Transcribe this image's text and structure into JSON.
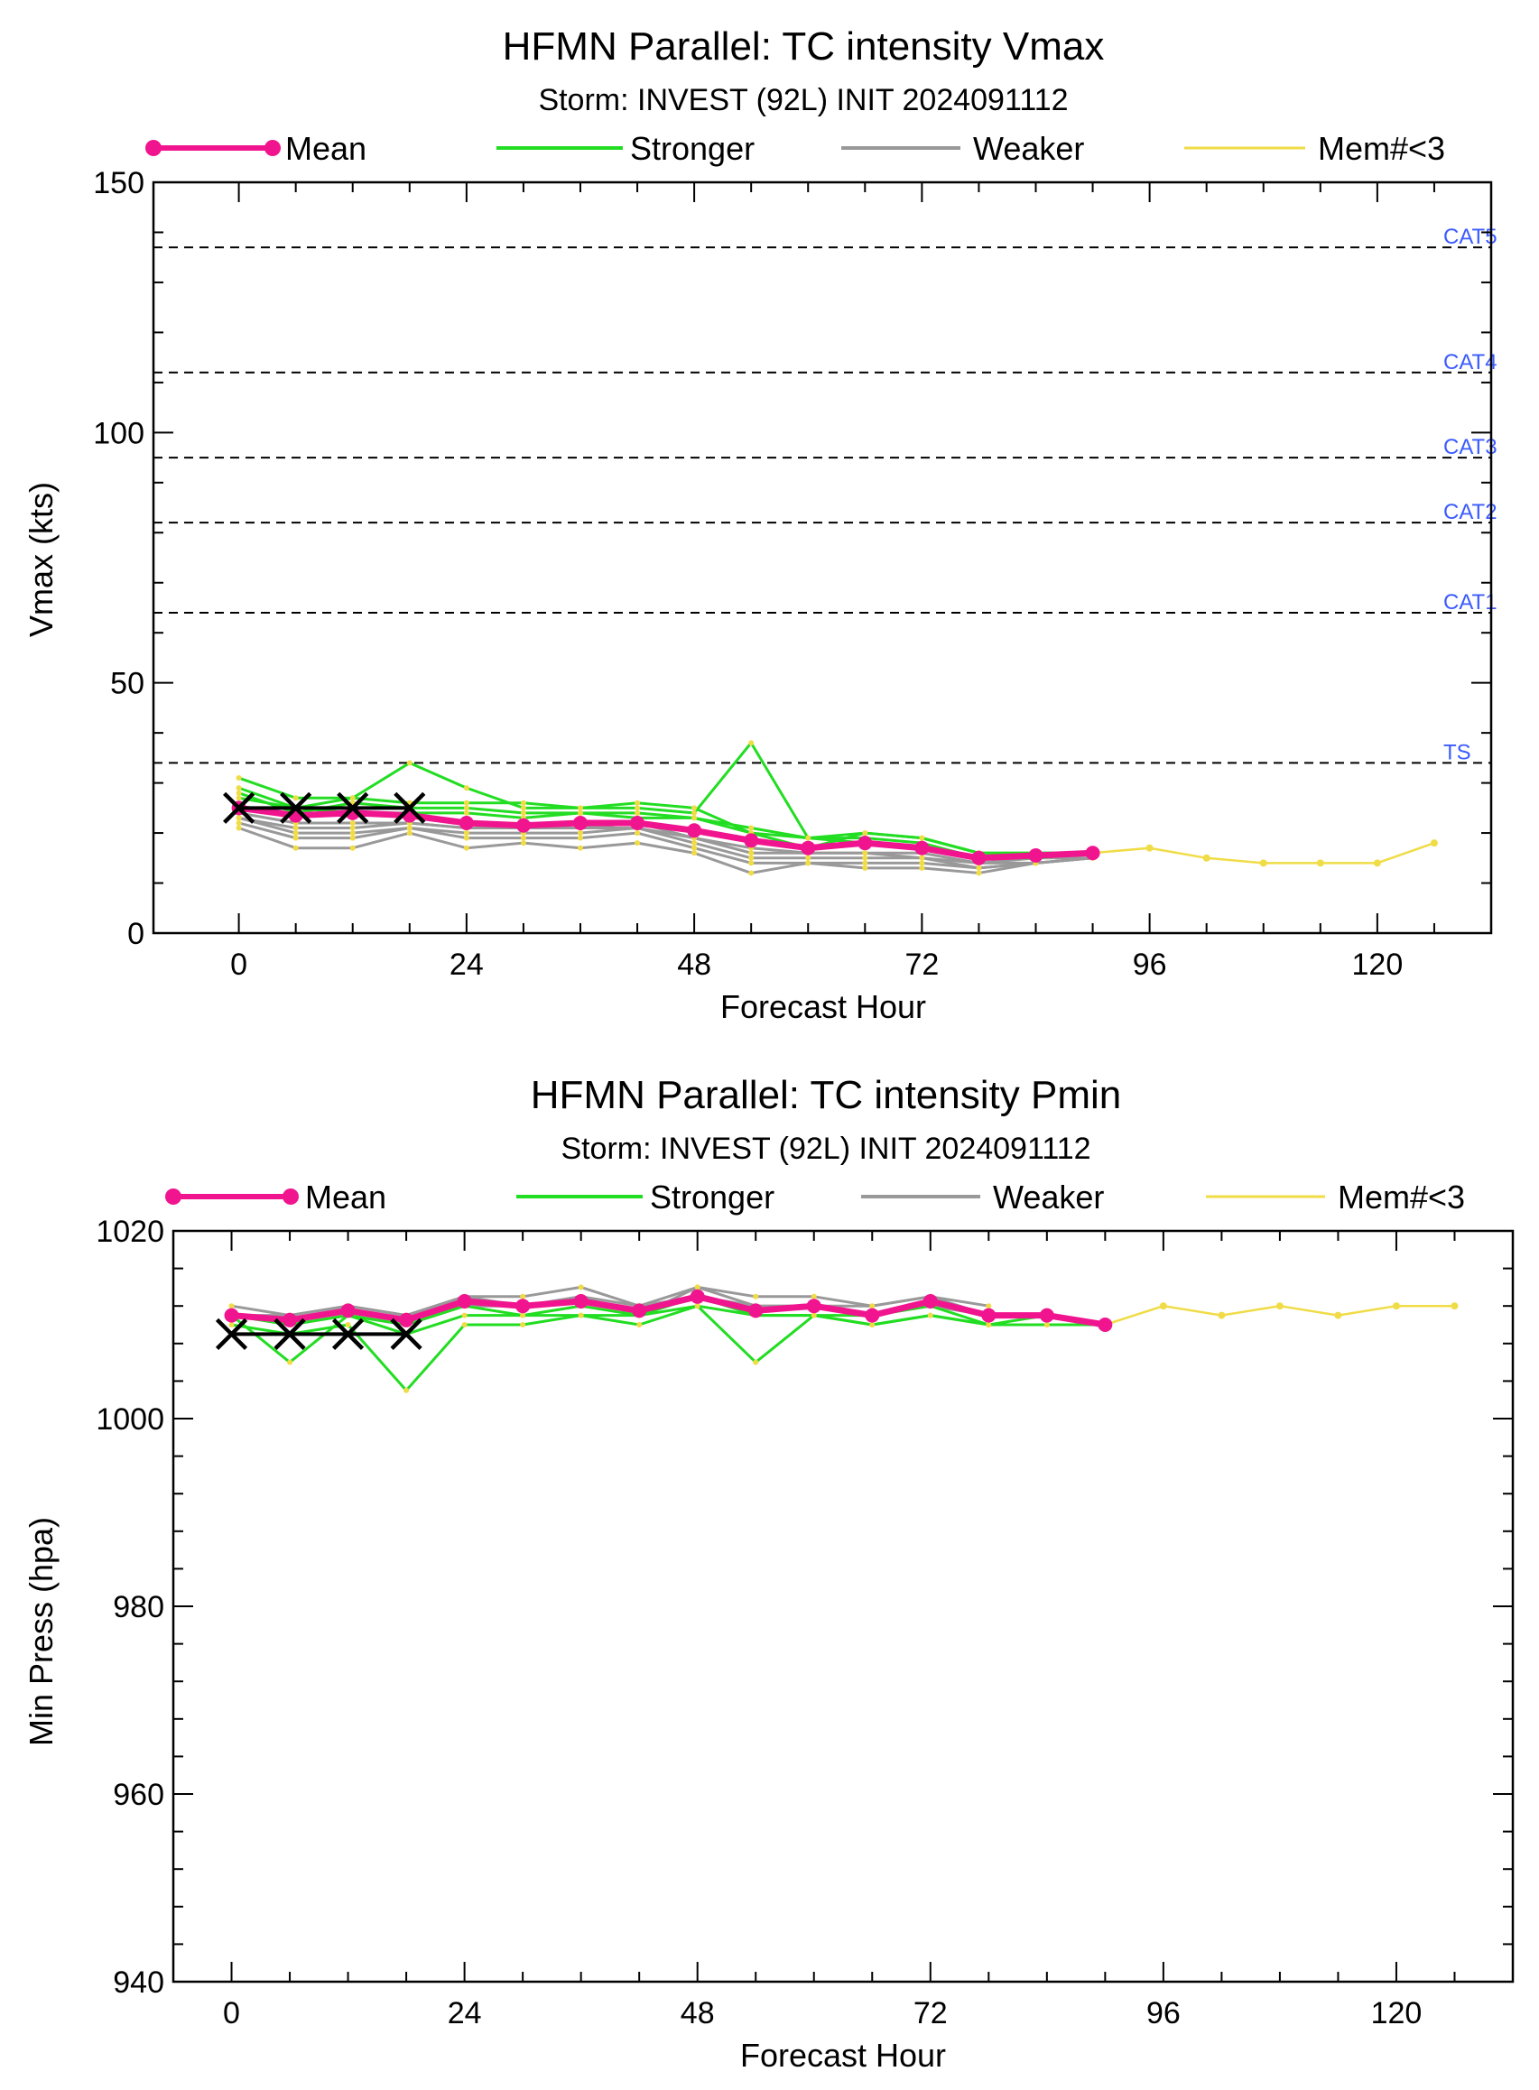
{
  "colors": {
    "mean": "#f0158f",
    "stronger": "#22dd22",
    "weaker": "#999999",
    "few_members": "#f0dc46",
    "observed": "#000000",
    "category": "#3b5bff"
  },
  "chart_data": [
    {
      "type": "line",
      "title": "HFMN Parallel: TC intensity Vmax",
      "subtitle": "Storm: INVEST (92L) INIT 2024091112",
      "xlabel": "Forecast Hour",
      "ylabel": "Vmax (kts)",
      "xlim": [
        -9,
        132
      ],
      "ylim": [
        0,
        150
      ],
      "xticks": [
        0,
        24,
        48,
        72,
        96,
        120
      ],
      "yticks": [
        0,
        50,
        100,
        150
      ],
      "grid": false,
      "legend": {
        "placement": "top",
        "entries": [
          "Mean",
          "Stronger",
          "Weaker",
          "Mem#<3"
        ]
      },
      "thresholds": [
        {
          "label": "TS",
          "y": 34
        },
        {
          "label": "CAT1",
          "y": 64
        },
        {
          "label": "CAT2",
          "y": 82
        },
        {
          "label": "CAT3",
          "y": 95
        },
        {
          "label": "CAT4",
          "y": 112
        },
        {
          "label": "CAT5",
          "y": 137
        }
      ],
      "observed": {
        "x": [
          0,
          6,
          12,
          18
        ],
        "y": [
          25,
          25,
          25,
          25
        ]
      },
      "mean": {
        "x": [
          0,
          6,
          12,
          18,
          24,
          30,
          36,
          42,
          48,
          54,
          60,
          66,
          72,
          78,
          84,
          90
        ],
        "y": [
          25,
          23.5,
          24,
          23.5,
          22,
          21.5,
          22,
          22,
          20.5,
          18.5,
          17,
          18,
          17,
          15,
          15.5,
          16
        ]
      },
      "stronger": [
        {
          "x": [
            0,
            6,
            12,
            18,
            24,
            30,
            36,
            42,
            48,
            54,
            60,
            66,
            72,
            78,
            84,
            90
          ],
          "y": [
            31,
            27,
            27,
            34,
            29,
            25,
            25,
            25,
            24,
            38,
            19,
            20,
            19,
            16,
            16,
            16
          ]
        },
        {
          "x": [
            0,
            6,
            12,
            18,
            24,
            30,
            36,
            42,
            48,
            54,
            60,
            66,
            72,
            78,
            84,
            90
          ],
          "y": [
            29,
            25,
            27,
            26,
            26,
            26,
            25,
            26,
            25,
            20,
            17,
            20,
            19,
            16,
            16,
            16
          ]
        },
        {
          "x": [
            0,
            6,
            12,
            18,
            24,
            30,
            36,
            42,
            48,
            54,
            60,
            66,
            72,
            78,
            84,
            90
          ],
          "y": [
            28,
            24,
            26,
            25,
            25,
            24,
            24,
            24,
            23,
            21,
            19,
            19,
            18,
            15,
            16,
            16
          ]
        },
        {
          "x": [
            0,
            6,
            12,
            18,
            24,
            30,
            36,
            42,
            48,
            54,
            60,
            66,
            72,
            78,
            84,
            90
          ],
          "y": [
            27,
            25,
            24,
            24,
            24,
            23,
            24,
            23,
            23,
            20,
            19,
            18,
            17,
            15,
            15,
            16
          ]
        }
      ],
      "weaker": [
        {
          "x": [
            0,
            6,
            12,
            18,
            24,
            30,
            36,
            42,
            48,
            54,
            60,
            66,
            72,
            78,
            84,
            90
          ],
          "y": [
            21,
            17,
            17,
            20,
            17,
            18,
            17,
            18,
            16,
            12,
            14,
            13,
            13,
            12,
            14,
            15
          ]
        },
        {
          "x": [
            0,
            6,
            12,
            18,
            24,
            30,
            36,
            42,
            48,
            54,
            60,
            66,
            72,
            78,
            84,
            90
          ],
          "y": [
            22,
            19,
            19,
            21,
            19,
            19,
            19,
            20,
            17,
            14,
            14,
            14,
            14,
            13,
            14,
            15
          ]
        },
        {
          "x": [
            0,
            6,
            12,
            18,
            24,
            30,
            36,
            42,
            48,
            54,
            60,
            66,
            72,
            78,
            84,
            90
          ],
          "y": [
            23,
            20,
            20,
            21,
            20,
            20,
            20,
            21,
            18,
            15,
            15,
            15,
            15,
            13,
            14,
            15
          ]
        },
        {
          "x": [
            0,
            6,
            12,
            18,
            24,
            30,
            36,
            42,
            48,
            54,
            60,
            66,
            72,
            78,
            84,
            90
          ],
          "y": [
            23,
            21,
            21,
            22,
            21,
            21,
            21,
            21,
            19,
            16,
            16,
            16,
            16,
            14,
            14,
            15
          ]
        },
        {
          "x": [
            0,
            6,
            12,
            18,
            24,
            30,
            36,
            42,
            48,
            54,
            60,
            66,
            72,
            78,
            84,
            90
          ],
          "y": [
            24,
            22,
            22,
            22,
            21,
            21,
            21,
            22,
            19,
            17,
            16,
            16,
            15,
            14,
            15,
            15
          ]
        }
      ],
      "few_members": {
        "x": [
          90,
          96,
          102,
          108,
          114,
          120,
          126
        ],
        "y": [
          16,
          17,
          15,
          14,
          14,
          14,
          18
        ]
      }
    },
    {
      "type": "line",
      "title": "HFMN Parallel: TC intensity Pmin",
      "subtitle": "Storm: INVEST (92L) INIT 2024091112",
      "xlabel": "Forecast Hour",
      "ylabel": "Min Press (hpa)",
      "xlim": [
        -6,
        132
      ],
      "ylim": [
        940,
        1020
      ],
      "xticks": [
        0,
        24,
        48,
        72,
        96,
        120
      ],
      "yticks": [
        940,
        960,
        980,
        1000,
        1020
      ],
      "grid": false,
      "legend": {
        "placement": "top",
        "entries": [
          "Mean",
          "Stronger",
          "Weaker",
          "Mem#<3"
        ]
      },
      "observed": {
        "x": [
          0,
          6,
          12,
          18
        ],
        "y": [
          1009,
          1009,
          1009,
          1009
        ]
      },
      "mean": {
        "x": [
          0,
          6,
          12,
          18,
          24,
          30,
          36,
          42,
          48,
          54,
          60,
          66,
          72,
          78,
          84,
          90
        ],
        "y": [
          1011,
          1010.5,
          1011.5,
          1010.5,
          1012.5,
          1012,
          1012.5,
          1011.5,
          1013,
          1011.5,
          1012,
          1011,
          1012.5,
          1011,
          1011,
          1010
        ]
      },
      "stronger": [
        {
          "x": [
            0,
            6,
            12,
            18,
            24,
            30,
            36,
            42,
            48,
            54,
            60,
            66,
            72,
            78,
            84,
            90
          ],
          "y": [
            1010,
            1009,
            1010,
            1003,
            1010,
            1010,
            1011,
            1010,
            1012,
            1006,
            1011,
            1010,
            1011,
            1010,
            1010,
            1010
          ]
        },
        {
          "x": [
            0,
            6,
            12,
            18,
            24,
            30,
            36,
            42,
            48,
            54,
            60,
            66,
            72,
            78,
            84,
            90
          ],
          "y": [
            1011,
            1006,
            1011,
            1009,
            1011,
            1011,
            1011,
            1011,
            1012,
            1011,
            1011,
            1010,
            1011,
            1010,
            1010,
            1010
          ]
        },
        {
          "x": [
            0,
            6,
            12,
            18,
            24,
            30,
            36,
            42,
            48,
            54,
            60,
            66,
            72,
            78,
            84,
            90
          ],
          "y": [
            1011,
            1010,
            1011,
            1010,
            1012,
            1011,
            1012,
            1011,
            1013,
            1011,
            1011,
            1011,
            1012,
            1010,
            1011,
            1010
          ]
        }
      ],
      "weaker": [
        {
          "x": [
            0,
            6,
            12,
            18,
            24,
            30,
            36,
            42,
            48,
            54,
            60,
            66,
            72,
            78
          ],
          "y": [
            1012,
            1011,
            1012,
            1011,
            1013,
            1013,
            1014,
            1012,
            1014,
            1013,
            1013,
            1012,
            1013,
            1012
          ]
        },
        {
          "x": [
            0,
            6,
            12,
            18,
            24,
            30,
            36,
            42,
            48,
            54,
            60,
            66,
            72,
            78
          ],
          "y": [
            1011,
            1011,
            1012,
            1011,
            1013,
            1012,
            1013,
            1012,
            1013,
            1012,
            1012,
            1012,
            1013,
            1011
          ]
        },
        {
          "x": [
            0,
            6,
            12,
            18,
            24,
            30,
            36,
            42,
            48,
            54,
            60,
            66,
            72,
            78
          ],
          "y": [
            1011,
            1010,
            1011,
            1010,
            1012,
            1012,
            1013,
            1011,
            1014,
            1012,
            1012,
            1011,
            1012,
            1011
          ]
        }
      ],
      "few_members": {
        "x": [
          90,
          96,
          102,
          108,
          114,
          120,
          126
        ],
        "y": [
          1010,
          1012,
          1011,
          1012,
          1011,
          1012,
          1012
        ]
      }
    }
  ]
}
